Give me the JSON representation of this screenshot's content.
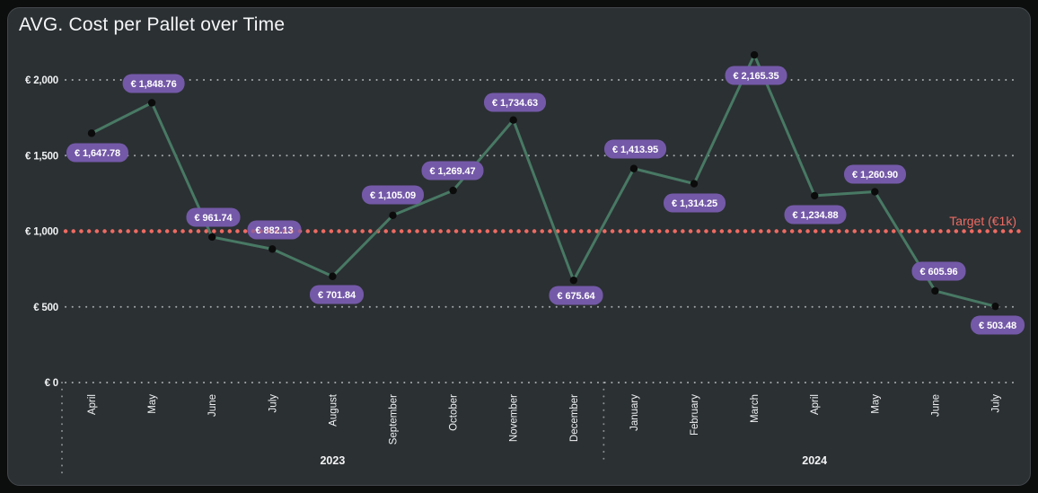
{
  "page": {
    "background": "#0c0d0d"
  },
  "card": {
    "background": "#2b3033",
    "border_color": "#43484c"
  },
  "chart_data": {
    "type": "line",
    "title": "AVG. Cost per Pallet over Time",
    "legend": "none",
    "grid": "dotted-horizontal",
    "x_axis": {
      "categories": [
        "April",
        "May",
        "June",
        "July",
        "August",
        "September",
        "October",
        "November",
        "December",
        "January",
        "February",
        "March",
        "April",
        "May",
        "June",
        "July"
      ],
      "year_groups": [
        {
          "label": "2023",
          "from": 0,
          "to": 8
        },
        {
          "label": "2024",
          "from": 9,
          "to": 15
        }
      ]
    },
    "y_axis": {
      "range": [
        0,
        2000
      ],
      "ticks": [
        {
          "label": "€ 2,000",
          "value": 2000
        },
        {
          "label": "€ 1,500",
          "value": 1500
        },
        {
          "label": "€ 1,000",
          "value": 1000
        },
        {
          "label": "€ 500",
          "value": 500
        },
        {
          "label": "€ 0",
          "value": 0
        }
      ]
    },
    "series": [
      {
        "values": [
          1647.78,
          1848.76,
          961.74,
          882.13,
          701.84,
          1105.09,
          1269.47,
          1734.63,
          675.64,
          1413.95,
          1314.25,
          2165.35,
          1234.88,
          1260.9,
          605.96,
          503.48
        ],
        "labels": [
          "€ 1,647.78",
          "€ 1,848.76",
          "€ 961.74",
          "€ 882.13",
          "€ 701.84",
          "€ 1,105.09",
          "€ 1,269.47",
          "€ 1,734.63",
          "€ 675.64",
          "€ 1,413.95",
          "€ 1,314.25",
          "€ 2,165.35",
          "€ 1,234.88",
          "€ 1,260.90",
          "€ 605.96",
          "€ 503.48"
        ],
        "label_dx": [
          6.5,
          2,
          1.3,
          2.2,
          4.6,
          0,
          -0.6,
          1.8,
          2.7,
          1.6,
          0.5,
          1.9,
          0.8,
          0.2,
          4.1,
          2.5
        ],
        "label_dy": [
          21.7,
          -21.5,
          -22,
          -21.4,
          20.3,
          -22.8,
          -22.1,
          -19.7,
          16.8,
          -21.8,
          21.5,
          22.9,
          21.1,
          -19.5,
          -21.9,
          20.8
        ]
      }
    ],
    "target": {
      "value": 1000,
      "label": "Target (€1k)"
    },
    "colors": {
      "line": "#487964",
      "marker": "#0b0b0b",
      "badge_bg": "#7459a8",
      "badge_text": "#ffffff",
      "target": "#ee6b62",
      "grid": "#d6d9db",
      "axis_text": "#f0f2f3",
      "title_text": "#f5f6f7"
    }
  }
}
